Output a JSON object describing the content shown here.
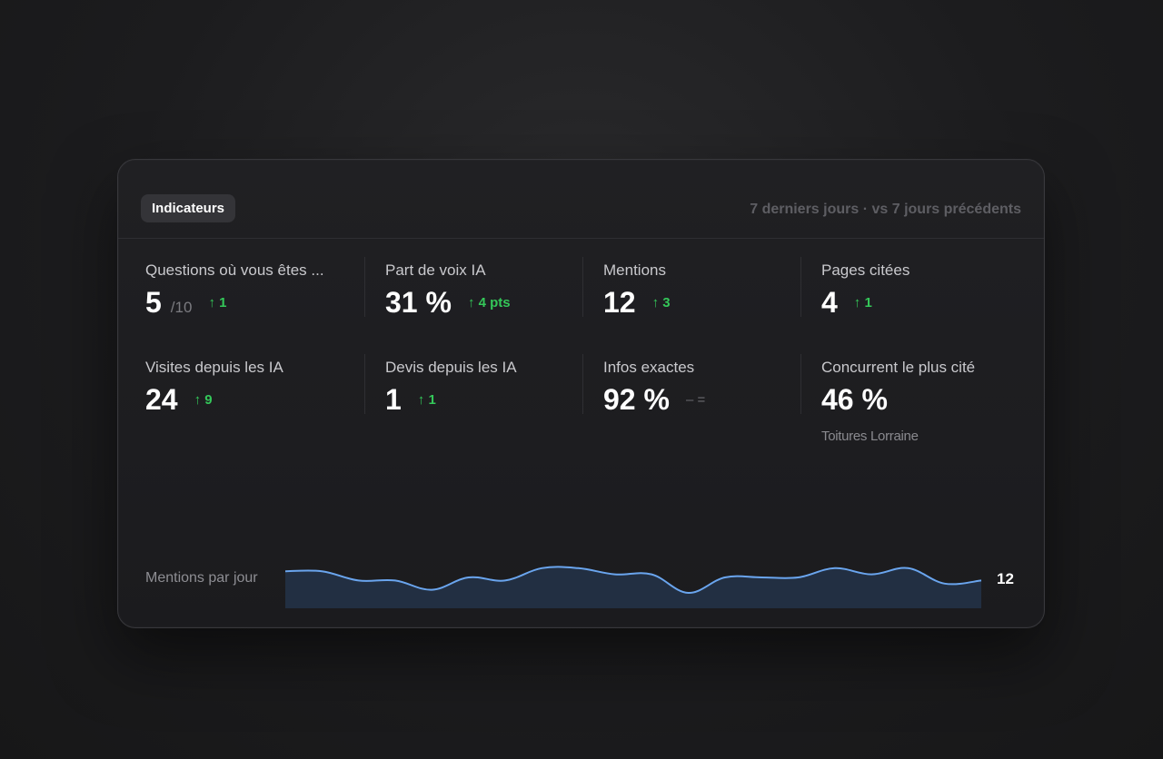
{
  "header": {
    "badge": "Indicateurs",
    "period": "7 derniers jours · vs 7 jours précédents"
  },
  "kpis": [
    {
      "label": "Questions où vous êtes ...",
      "value": "5",
      "suffix": "/10",
      "delta": "↑ 1",
      "trend": "up"
    },
    {
      "label": "Part de voix IA",
      "value": "31 %",
      "suffix": "",
      "delta": "↑ 4 pts",
      "trend": "up"
    },
    {
      "label": "Mentions",
      "value": "12",
      "suffix": "",
      "delta": "↑ 3",
      "trend": "up"
    },
    {
      "label": "Pages citées",
      "value": "4",
      "suffix": "",
      "delta": "↑ 1",
      "trend": "up"
    },
    {
      "label": "Visites depuis les IA",
      "value": "24",
      "suffix": "",
      "delta": "↑ 9",
      "trend": "up"
    },
    {
      "label": "Devis depuis les IA",
      "value": "1",
      "suffix": "",
      "delta": "↑ 1",
      "trend": "up"
    },
    {
      "label": "Infos exactes",
      "value": "92 %",
      "suffix": "",
      "delta": "– =",
      "trend": "flat"
    },
    {
      "label": "Concurrent le plus cité",
      "value": "46 %",
      "suffix": "",
      "delta": "",
      "trend": "none",
      "sub": "Toitures Lorraine"
    }
  ],
  "colors": {
    "positive": "#34c759",
    "neutral": "#6c6c71",
    "line": "#6aa5ee",
    "area": "#243246"
  },
  "chart_data": {
    "type": "area",
    "ylabel": "Mentions par jour",
    "end_label": "12",
    "values": [
      12,
      12,
      9,
      9,
      6,
      10,
      9,
      13,
      13,
      11,
      11,
      5,
      10,
      10,
      10,
      13,
      11,
      13,
      8,
      9
    ],
    "ylim": [
      0,
      20
    ]
  }
}
